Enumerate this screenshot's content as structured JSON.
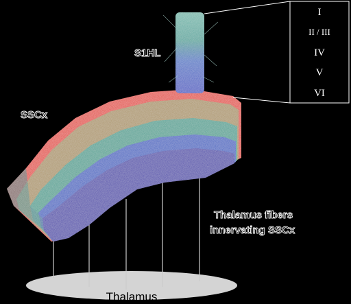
{
  "labels": {
    "sshl": "S1HL",
    "ssc": "SSCx",
    "thalamus_fibers_line1": "Thalamus fibers",
    "thalamus_fibers_line2": "innervating SSCx",
    "thalamus": "Thalamus"
  },
  "layers": [
    "I",
    "II / III",
    "IV",
    "V",
    "VI"
  ],
  "colors": {
    "background": "#000000",
    "layer_I": "#e23a2a",
    "layer_II_III": "#a88f5c",
    "layer_IV": "#3b9c8c",
    "layer_V": "#2e5ac0",
    "layer_VI": "#3b33a8",
    "thalamus_fill": "#d4d4d4"
  }
}
